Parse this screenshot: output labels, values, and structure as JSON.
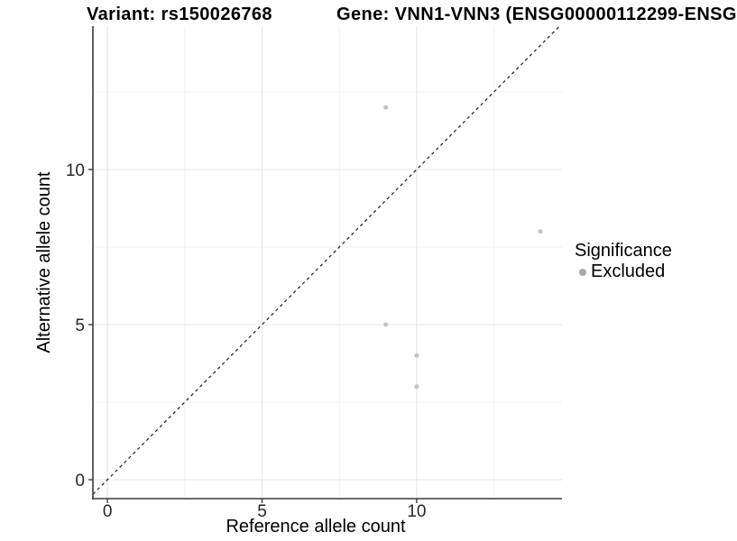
{
  "chart_data": {
    "type": "scatter",
    "titles": {
      "left": "Variant: rs150026768",
      "right": "Gene: VNN1-VNN3 (ENSG00000112299-ENSG"
    },
    "xlabel": "Reference allele count",
    "ylabel": "Alternative allele count",
    "xlim": [
      -0.47,
      14.7
    ],
    "ylim": [
      -0.61,
      14.62
    ],
    "x_major_ticks": [
      0,
      5,
      10
    ],
    "y_major_ticks": [
      0,
      5,
      10
    ],
    "x_minor_gridlines": [
      2.5,
      7.5,
      12.5
    ],
    "y_minor_gridlines": [
      2.5,
      7.5,
      12.5
    ],
    "grid": "major and minor, light gray on white",
    "points": [
      {
        "x": 9,
        "y": 12,
        "significance": "Excluded"
      },
      {
        "x": 14,
        "y": 8,
        "significance": "Excluded"
      },
      {
        "x": 9,
        "y": 5,
        "significance": "Excluded"
      },
      {
        "x": 10,
        "y": 4,
        "significance": "Excluded"
      },
      {
        "x": 10,
        "y": 3,
        "significance": "Excluded"
      }
    ],
    "identity_line": {
      "style": "dashed",
      "slope": 1,
      "intercept": 0
    },
    "legend": {
      "title": "Significance",
      "position": "right",
      "items": [
        {
          "label": "Excluded",
          "color": "#a9a9a9"
        }
      ]
    },
    "colors": {
      "point": "#c2c2c2",
      "grid_major": "#e4e4e4",
      "grid_minor": "#f0f0f0",
      "axis": "#3a3a3a",
      "identity_line": "#1a1a1a",
      "tick_text": "#262626"
    }
  }
}
